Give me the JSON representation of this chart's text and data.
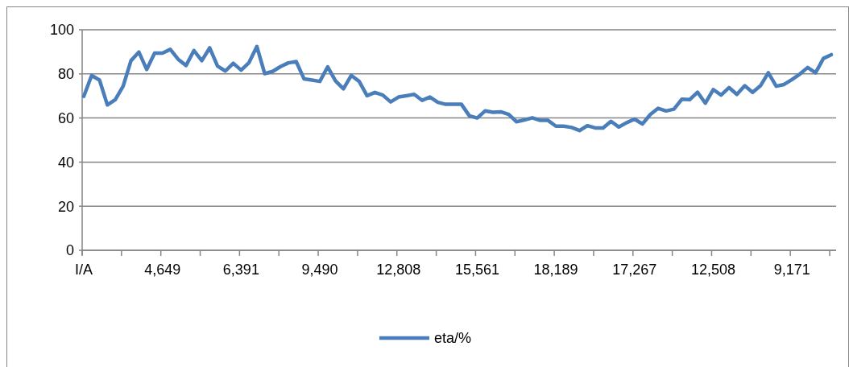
{
  "chart_data": {
    "type": "line",
    "categories": [
      "I/A",
      null,
      null,
      null,
      null,
      null,
      null,
      null,
      null,
      null,
      "4,649",
      null,
      null,
      null,
      null,
      null,
      null,
      null,
      null,
      null,
      "6,391",
      null,
      null,
      null,
      null,
      null,
      null,
      null,
      null,
      null,
      "9,490",
      null,
      null,
      null,
      null,
      null,
      null,
      null,
      null,
      null,
      "12,808",
      null,
      null,
      null,
      null,
      null,
      null,
      null,
      null,
      null,
      "15,561",
      null,
      null,
      null,
      null,
      null,
      null,
      null,
      null,
      null,
      "18,189",
      null,
      null,
      null,
      null,
      null,
      null,
      null,
      null,
      null,
      "17,267",
      null,
      null,
      null,
      null,
      null,
      null,
      null,
      null,
      null,
      "12,508",
      null,
      null,
      null,
      null,
      null,
      null,
      null,
      null,
      null,
      "9,171",
      null,
      null,
      null,
      null,
      null
    ],
    "series": [
      {
        "name": "eta/%",
        "color": "#4a7ebb",
        "values": [
          69.8,
          79.3,
          77.2,
          65.9,
          68.3,
          74.4,
          86,
          89.9,
          82,
          89.4,
          89.4,
          91.1,
          86.6,
          83.8,
          90.6,
          86,
          91.8,
          83.5,
          81.3,
          84.8,
          81.7,
          85.1,
          92.4,
          80.1,
          81.1,
          83.3,
          85,
          85.6,
          77.7,
          77.2,
          76.6,
          83.2,
          76.8,
          73.2,
          79.3,
          76.6,
          70.1,
          71.6,
          70.4,
          67.3,
          69.5,
          70.1,
          70.7,
          68,
          69.5,
          67.1,
          66.2,
          66.2,
          66.2,
          61,
          60,
          63.2,
          62.6,
          62.8,
          61.6,
          58.3,
          59.1,
          60.1,
          58.9,
          58.9,
          56.3,
          56.3,
          55.7,
          54.3,
          56.5,
          55.5,
          55.5,
          58.5,
          55.9,
          57.9,
          59.5,
          57.3,
          61.6,
          64.4,
          63.2,
          64,
          68.5,
          68.3,
          71.7,
          66.7,
          72.9,
          70.4,
          73.8,
          70.7,
          74.6,
          71.6,
          74.6,
          80.5,
          74.4,
          75.2,
          77.4,
          79.9,
          82.9,
          80.5,
          87,
          88.7
        ]
      }
    ],
    "ylim": [
      0,
      100
    ],
    "yticks": [
      0,
      20,
      40,
      60,
      80,
      100
    ],
    "grid": "y",
    "legend": "bottom",
    "line_style": "solid",
    "marker": "none"
  }
}
